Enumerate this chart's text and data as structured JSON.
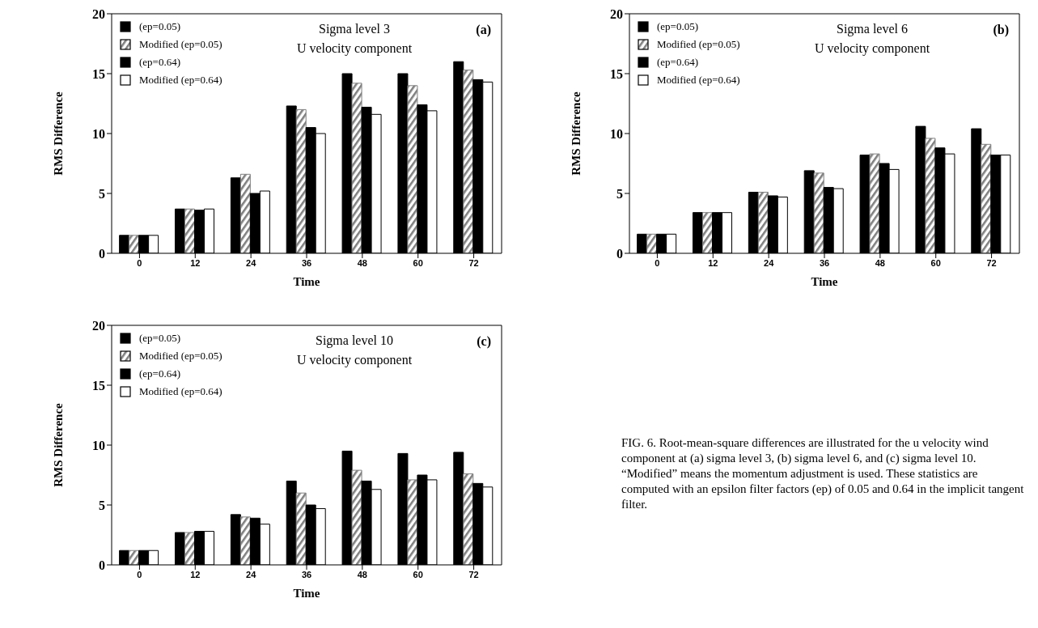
{
  "chart_data": [
    {
      "type": "bar",
      "title": "Sigma level 3",
      "subtitle": "U velocity component",
      "xlabel": "Time",
      "ylabel": "RMS Difference",
      "annotations": [
        "(a)"
      ],
      "categories": [
        "0",
        "12",
        "24",
        "36",
        "48",
        "60",
        "72"
      ],
      "ylim": [
        0,
        20
      ],
      "yticks": [
        0,
        5,
        10,
        15,
        20
      ],
      "legend": "top left",
      "series": [
        {
          "name": "(ep=0.05)",
          "color": "#000000",
          "values": [
            1.5,
            3.7,
            6.3,
            12.3,
            15.0,
            15.0,
            16.0
          ]
        },
        {
          "name": "Modified (ep=0.05)",
          "color": "#808080",
          "values": [
            1.5,
            3.7,
            6.6,
            12.0,
            14.2,
            14.0,
            15.3
          ]
        },
        {
          "name": "(ep=0.64)",
          "color": "#000000",
          "values": [
            1.5,
            3.6,
            5.0,
            10.5,
            12.2,
            12.4,
            14.5
          ]
        },
        {
          "name": "Modified (ep=0.64)",
          "color": "#ffffff",
          "values": [
            1.5,
            3.7,
            5.2,
            10.0,
            11.6,
            11.9,
            14.3
          ]
        }
      ]
    },
    {
      "type": "bar",
      "title": "Sigma level 6",
      "subtitle": "U velocity component",
      "xlabel": "Time",
      "ylabel": "RMS Difference",
      "annotations": [
        "(b)"
      ],
      "categories": [
        "0",
        "12",
        "24",
        "36",
        "48",
        "60",
        "72"
      ],
      "ylim": [
        0,
        20
      ],
      "yticks": [
        0,
        5,
        10,
        15,
        20
      ],
      "legend": "top left",
      "series": [
        {
          "name": "(ep=0.05)",
          "color": "#000000",
          "values": [
            1.6,
            3.4,
            5.1,
            6.9,
            8.2,
            10.6,
            10.4
          ]
        },
        {
          "name": "Modified (ep=0.05)",
          "color": "#808080",
          "values": [
            1.6,
            3.4,
            5.1,
            6.7,
            8.3,
            9.6,
            9.1
          ]
        },
        {
          "name": "(ep=0.64)",
          "color": "#000000",
          "values": [
            1.6,
            3.4,
            4.8,
            5.5,
            7.5,
            8.8,
            8.2
          ]
        },
        {
          "name": "Modified (ep=0.64)",
          "color": "#ffffff",
          "values": [
            1.6,
            3.4,
            4.7,
            5.4,
            7.0,
            8.3,
            8.2
          ]
        }
      ]
    },
    {
      "type": "bar",
      "title": "Sigma level 10",
      "subtitle": "U velocity component",
      "xlabel": "Time",
      "ylabel": "RMS Difference",
      "annotations": [
        "(c)",
        "FIG. 6. Root-mean-square differences are illustrated for the u velocity wind component at (a) sigma level 3, (b) sigma level 6, and (c) sigma level 10. “Modified” means the momentum adjustment is used. These statistics are computed with an epsilon filter factors (ep) of 0.05 and 0.64 in the implicit tangent filter."
      ],
      "categories": [
        "0",
        "12",
        "24",
        "36",
        "48",
        "60",
        "72"
      ],
      "ylim": [
        0,
        20
      ],
      "yticks": [
        0,
        5,
        10,
        15,
        20
      ],
      "legend": "top left",
      "series": [
        {
          "name": "(ep=0.05)",
          "color": "#000000",
          "values": [
            1.2,
            2.7,
            4.2,
            7.0,
            9.5,
            9.3,
            9.4
          ]
        },
        {
          "name": "Modified (ep=0.05)",
          "color": "#808080",
          "values": [
            1.2,
            2.7,
            4.0,
            6.0,
            7.9,
            7.1,
            7.6
          ]
        },
        {
          "name": "(ep=0.64)",
          "color": "#000000",
          "values": [
            1.2,
            2.8,
            3.9,
            5.0,
            7.0,
            7.5,
            6.8
          ]
        },
        {
          "name": "Modified (ep=0.64)",
          "color": "#ffffff",
          "values": [
            1.2,
            2.8,
            3.4,
            4.7,
            6.3,
            7.1,
            6.5
          ]
        }
      ]
    }
  ]
}
